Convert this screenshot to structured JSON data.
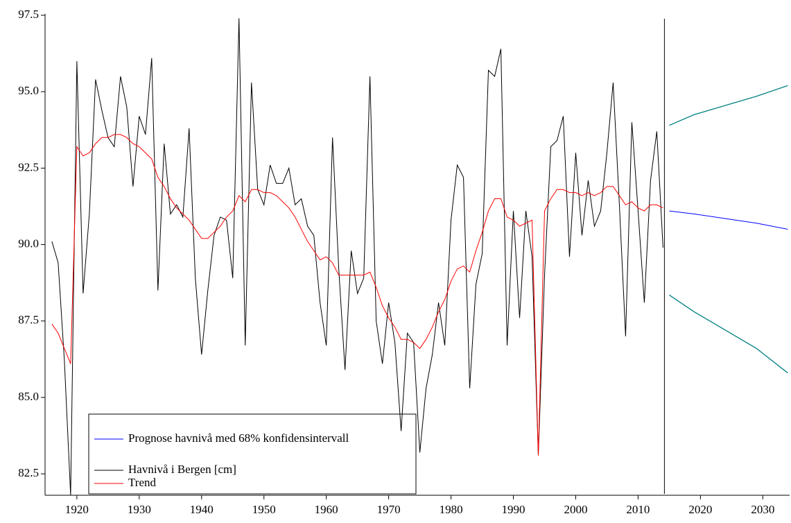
{
  "chart_data": {
    "type": "line",
    "xlim": [
      1914.9,
      2034.3
    ],
    "ylim": [
      81.8,
      97.5
    ],
    "xticks": [
      1920,
      1930,
      1940,
      1950,
      1960,
      1970,
      1980,
      1990,
      2000,
      2010,
      2020,
      2030
    ],
    "yticks": [
      82.5,
      {
        "value": 85,
        "label": "85.0"
      },
      87.5,
      {
        "value": 90,
        "label": "90.0"
      },
      92.5,
      {
        "value": 95,
        "label": "95.0"
      },
      97.5
    ],
    "series": [
      {
        "name": "Prognose havnivå med 68% konfidensintervall",
        "color": "#0000ff",
        "x": [
          2015,
          2019,
          2024,
          2029,
          2034
        ],
        "values": [
          91.1,
          91.0,
          90.85,
          90.7,
          90.5
        ]
      },
      {
        "name": "Havnivå i Bergen [cm]",
        "color": "#000000",
        "x": [
          1916,
          1917,
          1918,
          1919,
          1920,
          1921,
          1922,
          1923,
          1924,
          1925,
          1926,
          1927,
          1928,
          1929,
          1930,
          1931,
          1932,
          1933,
          1934,
          1935,
          1936,
          1937,
          1938,
          1939,
          1940,
          1941,
          1942,
          1943,
          1944,
          1945,
          1946,
          1947,
          1948,
          1949,
          1950,
          1951,
          1952,
          1953,
          1954,
          1955,
          1956,
          1957,
          1958,
          1959,
          1960,
          1961,
          1962,
          1963,
          1964,
          1965,
          1966,
          1967,
          1968,
          1969,
          1970,
          1971,
          1972,
          1973,
          1974,
          1975,
          1976,
          1977,
          1978,
          1979,
          1980,
          1981,
          1982,
          1983,
          1984,
          1985,
          1986,
          1987,
          1988,
          1989,
          1990,
          1991,
          1992,
          1993,
          1994,
          1995,
          1996,
          1997,
          1998,
          1999,
          2000,
          2001,
          2002,
          2003,
          2004,
          2005,
          2006,
          2007,
          2008,
          2009,
          2010,
          2011,
          2012,
          2013,
          2014
        ],
        "values": [
          90.1,
          89.4,
          86.2,
          81.8,
          96.0,
          88.4,
          91.0,
          95.4,
          94.4,
          93.5,
          93.2,
          95.5,
          94.5,
          91.9,
          94.2,
          93.6,
          96.1,
          88.5,
          93.3,
          91.0,
          91.3,
          90.9,
          93.8,
          88.9,
          86.4,
          88.5,
          90.3,
          90.9,
          90.8,
          88.9,
          97.4,
          86.7,
          95.3,
          91.8,
          91.3,
          92.6,
          92.0,
          92.0,
          92.5,
          91.3,
          91.5,
          90.6,
          90.3,
          88.1,
          86.7,
          93.5,
          89.2,
          85.9,
          89.8,
          88.4,
          88.9,
          95.5,
          87.5,
          86.1,
          88.1,
          86.8,
          83.9,
          87.1,
          86.8,
          83.2,
          85.3,
          86.4,
          88.1,
          86.7,
          90.8,
          92.6,
          92.2,
          85.3,
          88.7,
          89.7,
          95.7,
          95.5,
          96.4,
          86.7,
          91.1,
          87.6,
          91.1,
          89.6,
          83.1,
          89.0,
          93.2,
          93.4,
          94.2,
          89.6,
          93.0,
          90.3,
          92.1,
          90.6,
          91.1,
          93.0,
          95.3,
          91.3,
          87.0,
          94.0,
          91.1,
          88.1,
          92.1,
          93.7,
          89.9
        ]
      },
      {
        "name": "Trend",
        "color": "#ff0000",
        "x": [
          1916,
          1917,
          1918,
          1919,
          1920,
          1921,
          1922,
          1923,
          1924,
          1925,
          1926,
          1927,
          1928,
          1929,
          1930,
          1931,
          1932,
          1933,
          1934,
          1935,
          1936,
          1937,
          1938,
          1939,
          1940,
          1941,
          1942,
          1943,
          1944,
          1945,
          1946,
          1947,
          1948,
          1949,
          1950,
          1951,
          1952,
          1953,
          1954,
          1955,
          1956,
          1957,
          1958,
          1959,
          1960,
          1961,
          1962,
          1963,
          1964,
          1965,
          1966,
          1967,
          1968,
          1969,
          1970,
          1971,
          1972,
          1973,
          1974,
          1975,
          1976,
          1977,
          1978,
          1979,
          1980,
          1981,
          1982,
          1983,
          1984,
          1985,
          1986,
          1987,
          1988,
          1989,
          1990,
          1991,
          1992,
          1993,
          1994,
          1995,
          1996,
          1997,
          1998,
          1999,
          2000,
          2001,
          2002,
          2003,
          2004,
          2005,
          2006,
          2007,
          2008,
          2009,
          2010,
          2011,
          2012,
          2013,
          2014
        ],
        "values": [
          87.4,
          87.1,
          86.6,
          86.1,
          93.2,
          92.9,
          93.0,
          93.3,
          93.5,
          93.5,
          93.6,
          93.6,
          93.5,
          93.3,
          93.2,
          93.0,
          92.8,
          92.2,
          91.9,
          91.5,
          91.2,
          91.0,
          90.8,
          90.5,
          90.2,
          90.2,
          90.4,
          90.6,
          90.9,
          91.1,
          91.6,
          91.4,
          91.8,
          91.8,
          91.7,
          91.7,
          91.6,
          91.4,
          91.2,
          90.9,
          90.5,
          90.1,
          89.8,
          89.5,
          89.6,
          89.4,
          89.0,
          89.0,
          89.0,
          89.0,
          89.0,
          89.1,
          88.6,
          88.0,
          87.6,
          87.3,
          86.9,
          86.9,
          86.8,
          86.6,
          86.9,
          87.3,
          87.8,
          88.2,
          88.8,
          89.2,
          89.3,
          89.1,
          89.8,
          90.4,
          91.1,
          91.5,
          91.5,
          90.9,
          90.8,
          90.6,
          90.7,
          90.8,
          83.1,
          91.1,
          91.5,
          91.8,
          91.8,
          91.7,
          91.7,
          91.6,
          91.7,
          91.6,
          91.7,
          91.9,
          91.9,
          91.6,
          91.3,
          91.4,
          91.2,
          91.1,
          91.3,
          91.3,
          91.2
        ]
      }
    ],
    "forecast_band": {
      "color": "#008080",
      "x": [
        2015,
        2019,
        2024,
        2029,
        2034
      ],
      "upper": [
        93.9,
        94.25,
        94.55,
        94.85,
        95.2
      ],
      "lower": [
        88.35,
        87.8,
        87.2,
        86.6,
        85.8
      ]
    }
  }
}
